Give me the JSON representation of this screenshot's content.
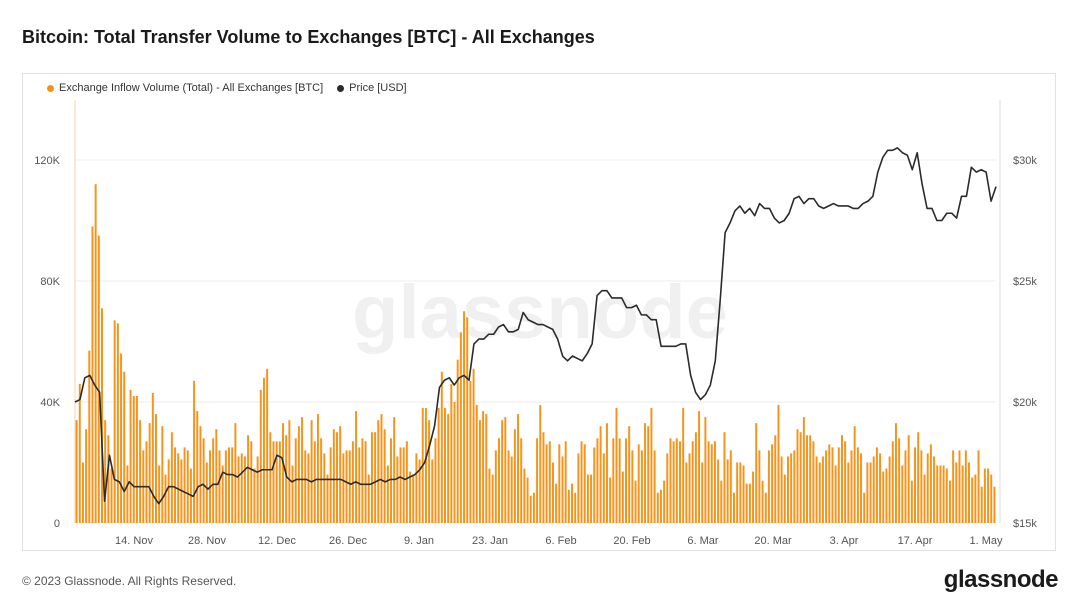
{
  "header": {
    "title": "Bitcoin: Total Transfer Volume to Exchanges [BTC] - All Exchanges"
  },
  "footer": {
    "copyright": "© 2023 Glassnode. All Rights Reserved.",
    "brand": "glassnode"
  },
  "watermark": "glassnode",
  "colors": {
    "bars": "#f7931a",
    "line": "#2b2b2b",
    "grid": "#eeeeee",
    "axis_text": "#555555"
  },
  "chart_data": {
    "type": "bar",
    "title": "Bitcoin: Total Transfer Volume to Exchanges [BTC] - All Exchanges",
    "legend_position": "top-left",
    "grid": true,
    "x_tick_labels": [
      "14. Nov",
      "28. Nov",
      "12. Dec",
      "26. Dec",
      "9. Jan",
      "23. Jan",
      "6. Feb",
      "20. Feb",
      "6. Mar",
      "20. Mar",
      "3. Apr",
      "17. Apr",
      "1. May"
    ],
    "y_left": {
      "ticks": [
        "0",
        "40K",
        "80K",
        "120K"
      ],
      "range": [
        0,
        138000
      ]
    },
    "y_right": {
      "ticks": [
        "$15k",
        "$20k",
        "$25k",
        "$30k"
      ],
      "range": [
        15000,
        32500
      ]
    },
    "series": [
      {
        "name": "Exchange Inflow Volume (Total) - All Exchanges [BTC]",
        "type": "bar",
        "axis": "left",
        "values": [
          34000,
          46000,
          20000,
          31000,
          57000,
          98000,
          112000,
          95000,
          71000,
          34000,
          29000,
          18000,
          67000,
          66000,
          56000,
          50000,
          19000,
          44000,
          42000,
          42000,
          34000,
          24000,
          27000,
          33000,
          43000,
          36000,
          19000,
          32000,
          16000,
          21000,
          30000,
          25000,
          23000,
          21000,
          25000,
          24000,
          18000,
          47000,
          37000,
          32000,
          28000,
          20000,
          24000,
          28000,
          31000,
          24000,
          19000,
          24000,
          25000,
          25000,
          33000,
          22000,
          23000,
          22000,
          29000,
          27000,
          18000,
          22000,
          44000,
          48000,
          51000,
          30000,
          27000,
          27000,
          27000,
          33000,
          29000,
          34000,
          19000,
          28000,
          32000,
          35000,
          24000,
          23000,
          34000,
          27000,
          36000,
          28000,
          23000,
          16000,
          25000,
          31000,
          30000,
          32000,
          23000,
          24000,
          24000,
          27000,
          37000,
          25000,
          28000,
          27000,
          16000,
          30000,
          30000,
          34000,
          36000,
          31000,
          19000,
          28000,
          35000,
          22000,
          25000,
          25000,
          27000,
          17000,
          16000,
          23000,
          21000,
          38000,
          38000,
          34000,
          21000,
          28000,
          38000,
          50000,
          38000,
          36000,
          46000,
          40000,
          54000,
          63000,
          70000,
          68000,
          47000,
          51000,
          39000,
          34000,
          37000,
          36000,
          18000,
          16000,
          24000,
          28000,
          34000,
          35000,
          24000,
          22000,
          31000,
          36000,
          28000,
          18000,
          15000,
          9000,
          10000,
          28000,
          39000,
          30000,
          26000,
          27000,
          20000,
          13000,
          26000,
          22000,
          27000,
          11000,
          13000,
          10000,
          23000,
          27000,
          26000,
          16000,
          16000,
          25000,
          28000,
          32000,
          23000,
          33000,
          15000,
          28000,
          38000,
          28000,
          17000,
          28000,
          32000,
          24000,
          14000,
          26000,
          24000,
          33000,
          32000,
          38000,
          24000,
          10000,
          11000,
          14000,
          23000,
          28000,
          27000,
          28000,
          27000,
          38000,
          20000,
          23000,
          27000,
          30000,
          37000,
          20000,
          35000,
          27000,
          26000,
          27000,
          21000,
          14000,
          30000,
          21000,
          24000,
          10000,
          20000,
          20000,
          19000,
          13000,
          13000,
          17000,
          33000,
          24000,
          14000,
          10000,
          24000,
          26000,
          29000,
          39000,
          22000,
          16000,
          22000,
          23000,
          24000,
          31000,
          30000,
          35000,
          29000,
          29000,
          27000,
          22000,
          20000,
          22000,
          24000,
          26000,
          25000,
          19000,
          25000,
          29000,
          27000,
          20000,
          24000,
          32000,
          25000,
          23000,
          10000,
          20000,
          20000,
          22000,
          25000,
          23000,
          17000,
          18000,
          22000,
          27000,
          33000,
          28000,
          19000,
          24000,
          29000,
          14000,
          25000,
          30000,
          24000,
          16000,
          23000,
          26000,
          22000,
          19000,
          19000,
          19000,
          18000,
          14000,
          24000,
          20000,
          24000,
          19000,
          24000,
          20000,
          15000,
          16000,
          24000,
          12000,
          18000,
          18000,
          16000,
          12000
        ]
      },
      {
        "name": "Price [USD]",
        "type": "line",
        "axis": "right",
        "values": [
          20000,
          20100,
          21000,
          21100,
          20700,
          20400,
          15900,
          17800,
          16800,
          16700,
          16300,
          16700,
          16500,
          16500,
          16500,
          16500,
          16100,
          15800,
          16100,
          16500,
          16500,
          16400,
          16300,
          16200,
          16100,
          16500,
          16600,
          16400,
          16600,
          16600,
          17100,
          17000,
          17000,
          16900,
          17100,
          17300,
          17200,
          17100,
          17200,
          17200,
          17200,
          17800,
          17700,
          16900,
          16700,
          16800,
          16800,
          16800,
          16700,
          16800,
          16800,
          16800,
          16800,
          16800,
          16800,
          16700,
          16600,
          16700,
          16600,
          16600,
          16600,
          16700,
          16800,
          16700,
          16800,
          16800,
          16900,
          16800,
          16900,
          17000,
          17200,
          17500,
          18200,
          19000,
          20600,
          20900,
          21000,
          20700,
          21000,
          21100,
          20900,
          22400,
          22600,
          22600,
          22800,
          22800,
          23100,
          23200,
          22900,
          22900,
          23000,
          23700,
          23400,
          23300,
          23200,
          23200,
          23100,
          23000,
          22600,
          21900,
          21700,
          21900,
          21800,
          21700,
          22000,
          22400,
          24400,
          24600,
          24600,
          24300,
          24300,
          24300,
          23900,
          23900,
          24000,
          23600,
          23600,
          23400,
          23400,
          22300,
          22300,
          22300,
          22300,
          22400,
          22400,
          21100,
          20400,
          20100,
          20300,
          20700,
          21700,
          24200,
          27000,
          27400,
          27900,
          28100,
          27800,
          28000,
          27700,
          28200,
          28000,
          28000,
          27600,
          27400,
          27500,
          27800,
          28400,
          28500,
          28200,
          28400,
          28400,
          28100,
          28000,
          28100,
          28200,
          28100,
          28100,
          28100,
          28000,
          28000,
          28200,
          28300,
          28500,
          29500,
          30100,
          30400,
          30400,
          30500,
          30300,
          30200,
          29600,
          30300,
          29000,
          28000,
          28000,
          27500,
          27500,
          27800,
          27800,
          27600,
          28500,
          28500,
          29700,
          29500,
          29600,
          29500,
          28300,
          28900
        ]
      }
    ]
  }
}
